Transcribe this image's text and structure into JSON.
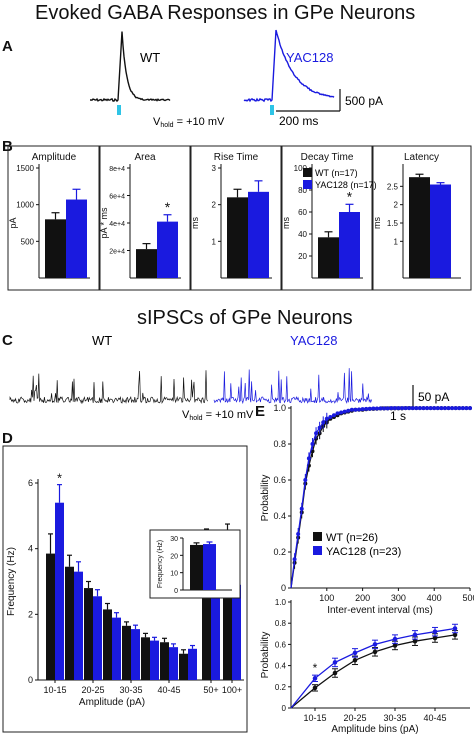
{
  "titles": {
    "top": "Evoked GABA Responses in GPe Neurons",
    "mid": "sIPSCs of GPe Neurons"
  },
  "panel_labels": [
    "A",
    "B",
    "C",
    "D",
    "E"
  ],
  "colors": {
    "wt": "#111111",
    "yac": "#1a1adf",
    "stim": "#2ec4e6"
  },
  "panelA": {
    "wt_label": "WT",
    "yac_label": "YAC128",
    "scale_y": "500 pA",
    "scale_x": "200 ms",
    "vhold_prefix": "V",
    "vhold_sub": "hold",
    "vhold_value": " = +10 mV"
  },
  "panelC": {
    "wt_label": "WT",
    "yac_label": "YAC128",
    "scale_y": "50 pA",
    "scale_x": "1 s",
    "vhold_prefix": "V",
    "vhold_sub": "hold",
    "vhold_value": " = +10 mV"
  },
  "chart_data": [
    {
      "type": "bar",
      "title": "Amplitude",
      "ylabel": "pA",
      "ylim": [
        0,
        1500
      ],
      "yticks": [
        500,
        1000,
        1500
      ],
      "categories": [
        "WT",
        "YAC128"
      ],
      "values": [
        800,
        1070
      ],
      "errors": [
        90,
        140
      ],
      "significant": false
    },
    {
      "type": "bar",
      "title": "Area",
      "ylabel": "pA * ms",
      "ylim": [
        0,
        80000
      ],
      "yticks": [
        20000,
        40000,
        60000,
        80000
      ],
      "ytick_labels": [
        "2e+4",
        "4e+4",
        "6e+4",
        "8e+4"
      ],
      "categories": [
        "WT",
        "YAC128"
      ],
      "values": [
        21000,
        41000
      ],
      "errors": [
        4000,
        5000
      ],
      "significant": true,
      "sig_mark": "*"
    },
    {
      "type": "bar",
      "title": "Rise Time",
      "ylabel": "ms",
      "ylim": [
        0,
        3
      ],
      "yticks": [
        1,
        2,
        3
      ],
      "categories": [
        "WT",
        "YAC128"
      ],
      "values": [
        2.2,
        2.35
      ],
      "errors": [
        0.22,
        0.3
      ],
      "significant": false
    },
    {
      "type": "bar",
      "title": "Decay Time",
      "ylabel": "ms",
      "ylim": [
        0,
        100
      ],
      "yticks": [
        20,
        40,
        60,
        80,
        100
      ],
      "categories": [
        "WT",
        "YAC128"
      ],
      "values": [
        37,
        60
      ],
      "errors": [
        5,
        7
      ],
      "significant": true,
      "sig_mark": "*",
      "legend": [
        "WT (n=17)",
        "YAC128 (n=17)"
      ]
    },
    {
      "type": "bar",
      "title": "Latency",
      "ylabel": "ms",
      "ylim": [
        0,
        3
      ],
      "yticks": [
        1,
        1.5,
        2,
        2.5
      ],
      "categories": [
        "WT",
        "YAC128"
      ],
      "values": [
        2.75,
        2.55
      ],
      "errors": [
        0.08,
        0.05
      ],
      "significant": false
    },
    {
      "type": "bar",
      "title": "",
      "ylabel": "Frequency (Hz)",
      "xlabel": "Amplitude (pA)",
      "ylim": [
        0,
        6
      ],
      "yticks": [
        0,
        2,
        4,
        6
      ],
      "categories": [
        "10-15",
        "15-20",
        "20-25",
        "25-30",
        "30-35",
        "35-40",
        "40-45",
        "45-50",
        "50+",
        "100+"
      ],
      "tick_labels": [
        "10-15",
        "20-25",
        "30-35",
        "40-45",
        "50+",
        "100+"
      ],
      "series": [
        {
          "name": "WT",
          "values": [
            3.85,
            3.45,
            2.8,
            2.15,
            1.65,
            1.3,
            1.15,
            0.8,
            4.0,
            4.15
          ],
          "errors": [
            0.6,
            0.35,
            0.2,
            0.18,
            0.12,
            0.12,
            0.12,
            0.12,
            0.6,
            0.6
          ]
        },
        {
          "name": "YAC128",
          "values": [
            5.4,
            3.3,
            2.55,
            1.9,
            1.55,
            1.2,
            1.0,
            0.95,
            3.7,
            2.9
          ],
          "errors": [
            0.55,
            0.3,
            0.2,
            0.15,
            0.12,
            0.1,
            0.1,
            0.1,
            0.5,
            0.5
          ]
        }
      ],
      "sig_index": 0,
      "sig_mark": "*",
      "inset": {
        "ylabel": "Frequency (Hz)",
        "ylim": [
          0,
          30
        ],
        "yticks": [
          0,
          10,
          20,
          30
        ],
        "values": [
          26,
          26.5
        ],
        "errors": [
          1.2,
          1.2
        ]
      }
    },
    {
      "type": "line",
      "title": "",
      "xlabel": "Inter-event interval (ms)",
      "ylabel": "Probability",
      "xlim": [
        0,
        500
      ],
      "ylim": [
        0,
        1
      ],
      "xticks": [
        100,
        200,
        300,
        400,
        500
      ],
      "yticks": [
        0,
        0.2,
        0.4,
        0.6,
        0.8,
        1.0
      ],
      "ytick_labels": [
        "0",
        "0.2",
        "0.4",
        "0.6",
        "0.8",
        "1.0"
      ],
      "x": [
        0,
        10,
        20,
        30,
        40,
        50,
        60,
        70,
        80,
        90,
        100,
        110,
        120,
        130,
        140,
        150,
        160,
        170,
        180,
        190,
        200,
        210,
        220,
        230,
        240,
        250,
        260,
        270,
        280,
        290,
        300,
        310,
        320,
        330,
        340,
        350,
        360,
        370,
        380,
        390,
        400,
        410,
        420,
        430,
        440,
        450,
        460,
        470,
        480,
        490,
        500
      ],
      "series": [
        {
          "name": "WT (n=26)",
          "values": [
            0,
            0.14,
            0.28,
            0.42,
            0.58,
            0.68,
            0.76,
            0.83,
            0.86,
            0.9,
            0.92,
            0.94,
            0.95,
            0.96,
            0.97,
            0.975,
            0.98,
            0.985,
            0.99,
            0.99,
            0.99,
            0.993,
            0.995,
            0.995,
            0.996,
            0.997,
            0.997,
            0.998,
            0.998,
            0.998,
            0.998,
            0.998,
            0.999,
            0.999,
            0.999,
            0.999,
            0.999,
            0.999,
            0.999,
            0.999,
            0.999,
            0.999,
            0.999,
            0.999,
            0.999,
            0.999,
            0.999,
            0.999,
            0.999,
            0.999,
            0.999
          ]
        },
        {
          "name": "YAC128 (n=23)",
          "values": [
            0,
            0.16,
            0.3,
            0.44,
            0.6,
            0.72,
            0.8,
            0.86,
            0.89,
            0.92,
            0.94,
            0.95,
            0.96,
            0.97,
            0.975,
            0.98,
            0.985,
            0.99,
            0.99,
            0.992,
            0.994,
            0.995,
            0.996,
            0.997,
            0.997,
            0.998,
            0.998,
            0.998,
            0.999,
            0.999,
            0.999,
            0.999,
            0.999,
            0.999,
            0.999,
            0.999,
            0.999,
            0.999,
            0.999,
            0.999,
            0.999,
            0.999,
            0.999,
            0.999,
            0.999,
            0.999,
            0.999,
            0.999,
            0.999,
            0.999,
            0.999
          ]
        }
      ]
    },
    {
      "type": "line",
      "title": "",
      "xlabel": "Amplitude bins (pA)",
      "ylabel": "Probability",
      "ylim": [
        0,
        1
      ],
      "yticks": [
        0,
        0.2,
        0.4,
        0.6,
        0.8,
        1.0
      ],
      "ytick_labels": [
        "0",
        "0.2",
        "0.4",
        "0.6",
        "0.8",
        "1.0"
      ],
      "categories": [
        "10-15",
        "15-20",
        "20-25",
        "25-30",
        "30-35",
        "35-40",
        "40-45",
        "45-50"
      ],
      "tick_labels": [
        "10-15",
        "20-25",
        "30-35",
        "40-45"
      ],
      "series": [
        {
          "name": "WT",
          "values": [
            0.19,
            0.33,
            0.45,
            0.53,
            0.59,
            0.63,
            0.66,
            0.69
          ],
          "errors": [
            0.03,
            0.04,
            0.04,
            0.04,
            0.04,
            0.04,
            0.04,
            0.04
          ]
        },
        {
          "name": "YAC128",
          "values": [
            0.28,
            0.43,
            0.52,
            0.6,
            0.65,
            0.69,
            0.72,
            0.75
          ],
          "errors": [
            0.03,
            0.04,
            0.04,
            0.04,
            0.04,
            0.04,
            0.04,
            0.04
          ]
        }
      ],
      "sig_index": 0,
      "sig_mark": "*"
    }
  ]
}
